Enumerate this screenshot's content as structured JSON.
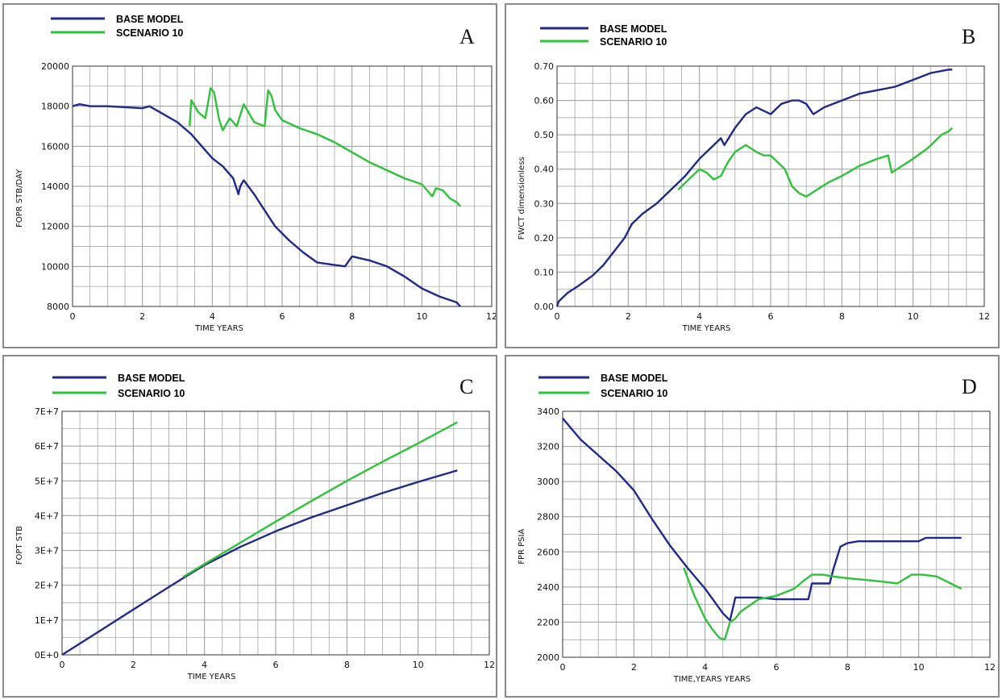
{
  "legend": {
    "series1": "BASE MODEL",
    "series2": "SCENARIO 10"
  },
  "colors": {
    "base": "#1f2a8a",
    "scenario": "#2fc23a",
    "grid": "#9a9a9a"
  },
  "chart_data": [
    {
      "id": "A",
      "letter": "A",
      "type": "line",
      "xlabel": "TIME   YEARS",
      "ylabel": "FOPR    STB/DAY",
      "xlim": [
        0,
        12
      ],
      "ylim": [
        8000,
        20000
      ],
      "grid": true,
      "legend": "top-left",
      "xticks": [
        "0",
        "2",
        "4",
        "6",
        "8",
        "10",
        "12"
      ],
      "yticks": [
        "8000",
        "10000",
        "12000",
        "14000",
        "16000",
        "18000",
        "20000"
      ],
      "series": [
        {
          "name": "BASE MODEL",
          "color": "#1f2a8a",
          "x": [
            0,
            0.2,
            0.5,
            1,
            1.5,
            2,
            2.2,
            2.5,
            3,
            3.4,
            3.7,
            4,
            4.3,
            4.6,
            4.75,
            4.8,
            4.9,
            5.2,
            5.5,
            5.8,
            6.2,
            6.6,
            7,
            7.4,
            7.8,
            8,
            8.5,
            9,
            9.5,
            10,
            10.5,
            11,
            11.1
          ],
          "y": [
            18000,
            18100,
            18000,
            18000,
            17950,
            17900,
            18000,
            17700,
            17200,
            16600,
            16000,
            15400,
            15000,
            14400,
            13600,
            14000,
            14300,
            13600,
            12800,
            12000,
            11300,
            10700,
            10200,
            10100,
            10000,
            10500,
            10300,
            10000,
            9500,
            8900,
            8500,
            8200,
            8000
          ]
        },
        {
          "name": "SCENARIO 10",
          "color": "#2fc23a",
          "x": [
            3.35,
            3.4,
            3.6,
            3.8,
            3.95,
            4.05,
            4.2,
            4.3,
            4.5,
            4.7,
            4.9,
            5.0,
            5.2,
            5.5,
            5.6,
            5.7,
            5.8,
            6.0,
            6.5,
            7,
            7.5,
            8,
            8.5,
            9,
            9.5,
            10,
            10.3,
            10.4,
            10.6,
            10.8,
            11,
            11.1
          ],
          "y": [
            17000,
            18300,
            17700,
            17400,
            18900,
            18700,
            17300,
            16800,
            17400,
            17000,
            18100,
            17800,
            17200,
            17000,
            18800,
            18500,
            17800,
            17300,
            16900,
            16600,
            16200,
            15700,
            15200,
            14800,
            14400,
            14100,
            13500,
            13900,
            13800,
            13400,
            13200,
            13000
          ]
        }
      ]
    },
    {
      "id": "B",
      "letter": "B",
      "type": "line",
      "xlabel": "TIME   YEARS",
      "ylabel": "FWCT    dimensionless",
      "xlim": [
        0,
        12
      ],
      "ylim": [
        0,
        0.7
      ],
      "grid": true,
      "legend": "top-left",
      "xticks": [
        "0",
        "2",
        "4",
        "6",
        "8",
        "10",
        "12"
      ],
      "yticks": [
        "0.00",
        "0.10",
        "0.20",
        "0.30",
        "0.40",
        "0.50",
        "0.60",
        "0.70"
      ],
      "series": [
        {
          "name": "BASE MODEL",
          "color": "#1f2a8a",
          "x": [
            0,
            0.05,
            0.15,
            0.3,
            0.6,
            1,
            1.3,
            1.6,
            1.9,
            2.1,
            2.4,
            2.8,
            3.2,
            3.6,
            4,
            4.3,
            4.6,
            4.7,
            5,
            5.3,
            5.6,
            5.8,
            6,
            6.3,
            6.6,
            6.8,
            7.0,
            7.2,
            7.5,
            8,
            8.5,
            9,
            9.5,
            10,
            10.5,
            11,
            11.1
          ],
          "y": [
            0,
            0.015,
            0.025,
            0.04,
            0.06,
            0.09,
            0.12,
            0.16,
            0.2,
            0.24,
            0.27,
            0.3,
            0.34,
            0.38,
            0.43,
            0.46,
            0.49,
            0.47,
            0.52,
            0.56,
            0.58,
            0.57,
            0.56,
            0.59,
            0.6,
            0.6,
            0.59,
            0.56,
            0.58,
            0.6,
            0.62,
            0.63,
            0.64,
            0.66,
            0.68,
            0.69,
            0.69
          ]
        },
        {
          "name": "SCENARIO 10",
          "color": "#2fc23a",
          "x": [
            3.4,
            3.7,
            4.0,
            4.2,
            4.4,
            4.6,
            4.8,
            5.0,
            5.3,
            5.6,
            5.8,
            6.0,
            6.2,
            6.4,
            6.6,
            6.8,
            7.0,
            7.3,
            7.6,
            8,
            8.5,
            9,
            9.3,
            9.4,
            9.7,
            10,
            10.4,
            10.6,
            10.8,
            11,
            11.1
          ],
          "y": [
            0.34,
            0.37,
            0.4,
            0.39,
            0.37,
            0.38,
            0.42,
            0.45,
            0.47,
            0.45,
            0.44,
            0.44,
            0.42,
            0.4,
            0.35,
            0.33,
            0.32,
            0.34,
            0.36,
            0.38,
            0.41,
            0.43,
            0.44,
            0.39,
            0.41,
            0.43,
            0.46,
            0.48,
            0.5,
            0.51,
            0.52
          ]
        }
      ]
    },
    {
      "id": "C",
      "letter": "C",
      "type": "line",
      "xlabel": "TIME   YEARS",
      "ylabel": "FOPT    STB",
      "xlim": [
        0,
        12
      ],
      "ylim": [
        0,
        70000000
      ],
      "grid": true,
      "legend": "top-left",
      "xticks": [
        "0",
        "2",
        "4",
        "6",
        "8",
        "10",
        "12"
      ],
      "yticks": [
        "0E+0",
        "1E+7",
        "2E+7",
        "3E+7",
        "4E+7",
        "5E+7",
        "6E+7",
        "7E+7"
      ],
      "series": [
        {
          "name": "BASE MODEL",
          "color": "#1f2a8a",
          "x": [
            0,
            1,
            2,
            3,
            3.5,
            4,
            5,
            6,
            7,
            8,
            9,
            10,
            11,
            11.1
          ],
          "y": [
            0,
            6500000,
            13000000,
            19500000,
            22700000,
            25800000,
            31000000,
            35500000,
            39500000,
            43000000,
            46500000,
            49700000,
            52700000,
            53000000
          ]
        },
        {
          "name": "SCENARIO 10",
          "color": "#2fc23a",
          "x": [
            3.4,
            4,
            5,
            6,
            7,
            8,
            9,
            10,
            11,
            11.1
          ],
          "y": [
            22400000,
            26100000,
            32200000,
            38300000,
            44200000,
            50000000,
            55500000,
            60800000,
            66300000,
            66900000
          ]
        }
      ]
    },
    {
      "id": "D",
      "letter": "D",
      "type": "line",
      "xlabel": "TIME,YEARS   YEARS",
      "ylabel": "FPR    PSIA",
      "xlim": [
        0,
        12
      ],
      "ylim": [
        2000,
        3400
      ],
      "grid": true,
      "legend": "top-left",
      "xticks": [
        "0",
        "2",
        "4",
        "6",
        "8",
        "10",
        "12"
      ],
      "yticks": [
        "2000",
        "2200",
        "2400",
        "2600",
        "2800",
        "3000",
        "3200",
        "3400"
      ],
      "series": [
        {
          "name": "BASE MODEL",
          "color": "#1f2a8a",
          "x": [
            0,
            0.5,
            1,
            1.5,
            2,
            2.5,
            3,
            3.5,
            4,
            4.5,
            4.7,
            4.85,
            5.0,
            5.5,
            6.0,
            6.5,
            6.9,
            7.0,
            7.5,
            7.6,
            7.8,
            8.0,
            8.3,
            9,
            9.5,
            10,
            10.2,
            10.5,
            11,
            11.2
          ],
          "y": [
            3360,
            3240,
            3150,
            3060,
            2950,
            2790,
            2640,
            2510,
            2390,
            2250,
            2210,
            2340,
            2340,
            2340,
            2330,
            2330,
            2330,
            2420,
            2420,
            2500,
            2630,
            2650,
            2660,
            2660,
            2660,
            2660,
            2680,
            2680,
            2680,
            2680
          ]
        },
        {
          "name": "SCENARIO 10",
          "color": "#2fc23a",
          "x": [
            3.4,
            3.7,
            4.0,
            4.2,
            4.4,
            4.55,
            4.7,
            4.85,
            5.0,
            5.5,
            6.0,
            6.5,
            6.8,
            7.0,
            7.3,
            7.6,
            8.0,
            8.5,
            9,
            9.4,
            9.8,
            10.1,
            10.5,
            10.8,
            11.0,
            11.2
          ],
          "y": [
            2510,
            2350,
            2220,
            2160,
            2110,
            2100,
            2200,
            2220,
            2260,
            2330,
            2350,
            2390,
            2440,
            2470,
            2470,
            2460,
            2450,
            2440,
            2430,
            2420,
            2470,
            2470,
            2460,
            2430,
            2410,
            2390
          ]
        }
      ]
    }
  ]
}
